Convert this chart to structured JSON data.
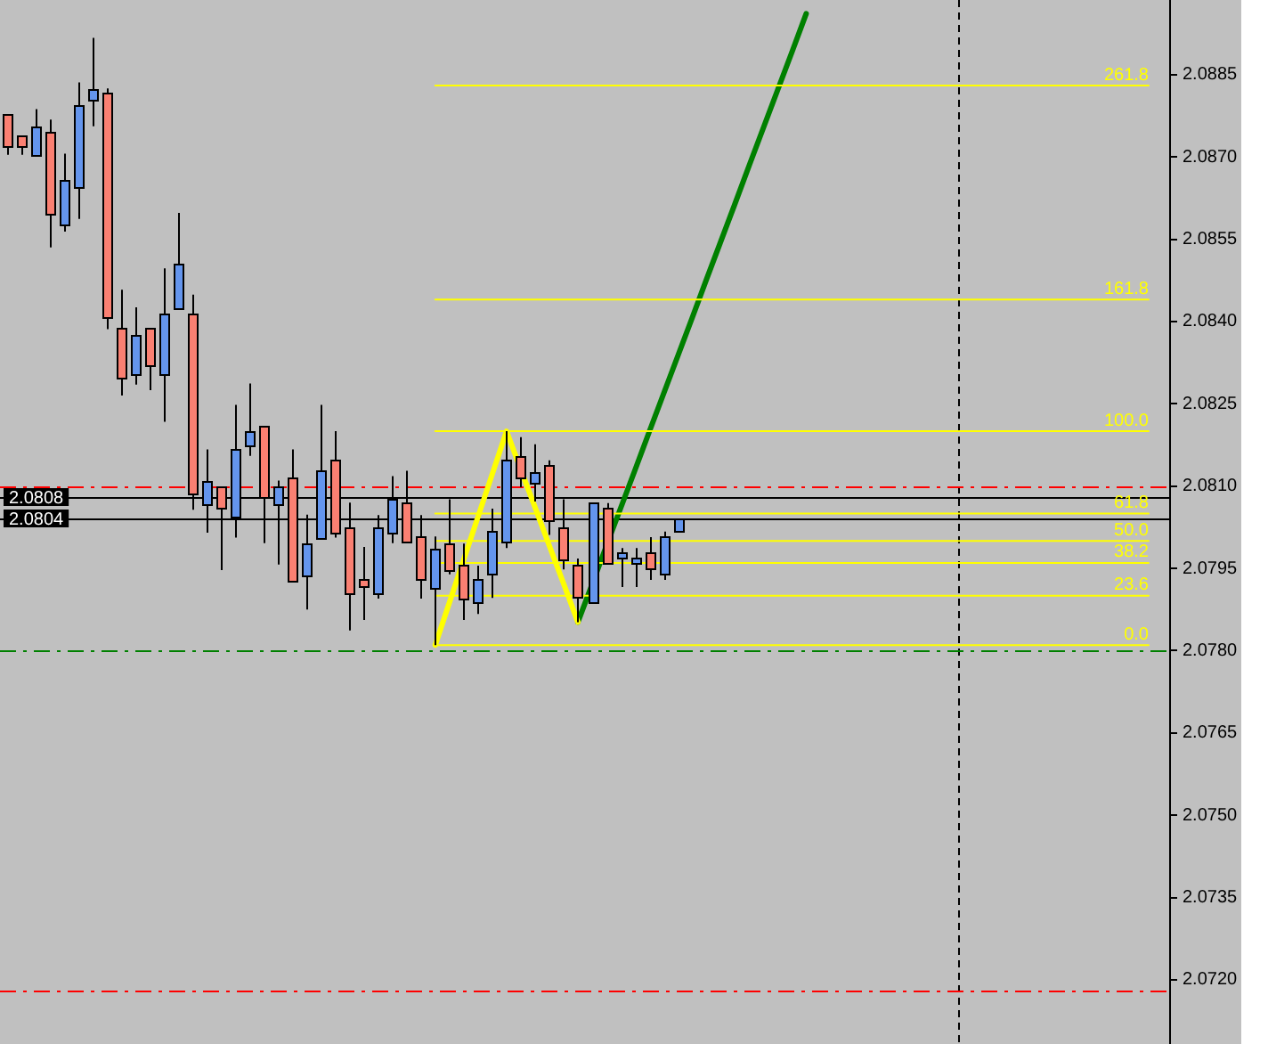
{
  "chart_data": {
    "type": "candlestick",
    "categories": [
      null,
      null,
      null,
      null,
      null,
      null,
      null,
      null,
      null,
      null,
      null,
      null,
      null,
      null,
      null,
      null,
      null,
      null,
      null,
      null,
      null,
      null,
      null,
      null,
      null,
      null,
      null,
      null,
      null,
      null,
      null,
      null,
      null,
      null,
      null,
      null,
      null,
      null,
      null,
      null,
      null,
      null,
      null,
      null,
      null,
      null,
      null,
      null,
      null,
      null,
      null,
      null,
      null,
      null,
      null,
      null,
      null,
      null,
      null,
      null,
      null,
      null,
      null,
      null,
      null,
      null,
      null,
      null,
      null,
      null,
      null,
      null,
      null,
      null,
      null,
      null,
      null,
      null,
      null,
      null,
      null,
      null
    ],
    "ohlc": [
      [
        2.08777,
        2.08777,
        2.08704,
        2.08718
      ],
      [
        2.08738,
        2.08738,
        2.08704,
        2.08718
      ],
      [
        2.08705,
        2.08787,
        2.08705,
        2.08757
      ],
      [
        2.08747,
        2.08768,
        2.08535,
        2.08598
      ],
      [
        2.08575,
        2.08706,
        2.08564,
        2.08657
      ],
      [
        2.08647,
        2.08836,
        2.08587,
        2.08796
      ],
      [
        2.08806,
        2.08917,
        2.08756,
        2.08825
      ],
      [
        2.08816,
        2.08825,
        2.08386,
        2.08406
      ],
      [
        2.08387,
        2.08458,
        2.08265,
        2.08296
      ],
      [
        2.08306,
        2.08426,
        2.08285,
        2.08377
      ],
      [
        2.08387,
        2.08387,
        2.08275,
        2.08319
      ],
      [
        2.08306,
        2.08497,
        2.08217,
        2.08416
      ],
      [
        2.08426,
        2.08598,
        2.08426,
        2.08507
      ],
      [
        2.08416,
        2.08449,
        2.08057,
        2.08087
      ],
      [
        2.08067,
        2.08167,
        2.08015,
        2.08109
      ],
      [
        2.08098,
        2.08098,
        2.07947,
        2.08058
      ],
      [
        2.08045,
        2.08248,
        2.08006,
        2.08167
      ],
      [
        2.08174,
        2.08287,
        2.08155,
        2.082
      ],
      [
        2.08209,
        2.08209,
        2.07996,
        2.08078
      ],
      [
        2.08067,
        2.0811,
        2.07957,
        2.08099
      ],
      [
        2.08117,
        2.08167,
        2.07928,
        2.07928
      ],
      [
        2.07937,
        2.08048,
        2.07875,
        2.07997
      ],
      [
        2.08006,
        2.08248,
        2.08006,
        2.08128
      ],
      [
        2.08147,
        2.082,
        2.08006,
        2.08015
      ],
      [
        2.08026,
        2.0807,
        2.07837,
        2.07905
      ],
      [
        2.07929,
        2.07989,
        2.07856,
        2.07915
      ],
      [
        2.07905,
        2.08047,
        2.07895,
        2.08026
      ],
      [
        2.08017,
        2.08118,
        2.07996,
        2.08078
      ],
      [
        2.08069,
        2.08128,
        2.07997,
        2.07997
      ],
      [
        2.08007,
        2.08047,
        2.07895,
        2.07928
      ],
      [
        2.07916,
        2.08008,
        2.0781,
        2.07987
      ],
      [
        2.07997,
        2.08076,
        2.07939,
        2.07948
      ],
      [
        2.07958,
        2.07995,
        2.07856,
        2.07896
      ],
      [
        2.07887,
        2.07955,
        2.07867,
        2.07929
      ],
      [
        2.07939,
        2.08059,
        2.07896,
        2.08017
      ],
      [
        2.07997,
        2.082,
        2.07987,
        2.08147
      ],
      [
        2.08156,
        2.08189,
        2.08098,
        2.08117
      ],
      [
        2.08108,
        2.08176,
        2.08072,
        2.08127
      ],
      [
        2.08137,
        2.08147,
        2.08011,
        2.08037
      ],
      [
        2.08026,
        2.08076,
        2.07948,
        2.07968
      ],
      [
        2.07958,
        2.07968,
        2.07852,
        2.079
      ],
      [
        2.07887,
        2.08069,
        2.07887,
        2.08069
      ],
      [
        2.08059,
        2.08069,
        2.07958,
        2.07958
      ],
      [
        2.07968,
        2.07987,
        2.07916,
        2.07978
      ],
      [
        2.07958,
        2.07987,
        2.07916,
        2.07968
      ],
      [
        2.07978,
        2.08007,
        2.07929,
        2.07948
      ],
      [
        2.07939,
        2.08017,
        2.07929,
        2.08007
      ],
      [
        2.08017,
        2.0804,
        2.08017,
        2.0804
      ],
      null,
      null,
      null,
      null,
      null,
      null,
      null,
      null,
      null,
      null,
      null,
      null,
      null,
      null,
      null,
      null,
      null,
      null,
      null,
      null,
      null,
      null,
      null,
      null,
      null,
      null,
      null,
      null,
      null,
      null,
      null,
      null,
      null,
      null
    ],
    "colors": [
      "#fa8072",
      "#fa8072",
      "#6495ed",
      "#fa8072",
      "#6495ed",
      "#6495ed",
      "#6495ed",
      "#fa8072",
      "#fa8072",
      "#6495ed",
      "#fa8072",
      "#6495ed",
      "#6495ed",
      "#fa8072",
      "#6495ed",
      "#fa8072",
      "#6495ed",
      "#6495ed",
      "#fa8072",
      "#6495ed",
      "#fa8072",
      "#6495ed",
      "#6495ed",
      "#fa8072",
      "#fa8072",
      "#fa8072",
      "#6495ed",
      "#6495ed",
      "#fa8072",
      "#fa8072",
      "#6495ed",
      "#fa8072",
      "#fa8072",
      "#6495ed",
      "#6495ed",
      "#6495ed",
      "#fa8072",
      "#6495ed",
      "#fa8072",
      "#fa8072",
      "#fa8072",
      "#6495ed",
      "#fa8072",
      "#6495ed",
      "#6495ed",
      "#fa8072",
      "#6495ed",
      "#6495ed",
      null,
      null,
      null,
      null,
      null,
      null,
      null,
      null,
      null,
      null,
      null,
      null,
      null,
      null,
      null,
      null,
      null,
      null,
      null,
      null,
      null,
      null,
      null,
      null,
      null,
      null,
      null,
      null,
      null,
      null,
      null,
      null,
      null,
      null
    ],
    "series": [
      {
        "name": "0.0",
        "type": "line",
        "color": "#ffff00",
        "values": [
          null,
          null,
          null,
          null,
          null,
          null,
          null,
          null,
          null,
          null,
          null,
          null,
          null,
          null,
          null,
          null,
          null,
          null,
          null,
          null,
          null,
          null,
          null,
          null,
          null,
          null,
          null,
          null,
          null,
          null,
          2.0781,
          2.0781,
          2.0781,
          2.0781,
          2.0781,
          2.0781,
          2.0781,
          2.0781,
          2.0781,
          2.0781,
          2.0781,
          2.0781,
          2.0781,
          2.0781,
          2.0781,
          2.0781,
          2.0781,
          2.0781,
          2.0781,
          2.0781,
          2.0781,
          2.0781,
          2.0781,
          2.0781,
          2.0781,
          2.0781,
          2.0781,
          2.0781,
          2.0781,
          2.0781,
          2.0781,
          2.0781,
          2.0781,
          2.0781,
          2.0781,
          2.0781,
          2.0781,
          2.0781,
          2.0781,
          2.0781,
          2.0781,
          2.0781,
          2.0781,
          2.0781,
          2.0781,
          2.0781,
          2.0781,
          2.0781,
          2.0781,
          2.0781,
          2.0781,
          null
        ]
      },
      {
        "name": "23.6",
        "type": "line",
        "color": "#ffff00",
        "values": [
          null,
          null,
          null,
          null,
          null,
          null,
          null,
          null,
          null,
          null,
          null,
          null,
          null,
          null,
          null,
          null,
          null,
          null,
          null,
          null,
          null,
          null,
          null,
          null,
          null,
          null,
          null,
          null,
          null,
          null,
          2.079,
          2.079,
          2.079,
          2.079,
          2.079,
          2.079,
          2.079,
          2.079,
          2.079,
          2.079,
          2.079,
          2.079,
          2.079,
          2.079,
          2.079,
          2.079,
          2.079,
          2.079,
          2.079,
          2.079,
          2.079,
          2.079,
          2.079,
          2.079,
          2.079,
          2.079,
          2.079,
          2.079,
          2.079,
          2.079,
          2.079,
          2.079,
          2.079,
          2.079,
          2.079,
          2.079,
          2.079,
          2.079,
          2.079,
          2.079,
          2.079,
          2.079,
          2.079,
          2.079,
          2.079,
          2.079,
          2.079,
          2.079,
          2.079,
          2.079,
          2.079,
          null
        ]
      },
      {
        "name": "38.2",
        "type": "line",
        "color": "#ffff00",
        "values": [
          null,
          null,
          null,
          null,
          null,
          null,
          null,
          null,
          null,
          null,
          null,
          null,
          null,
          null,
          null,
          null,
          null,
          null,
          null,
          null,
          null,
          null,
          null,
          null,
          null,
          null,
          null,
          null,
          null,
          null,
          2.0796,
          2.0796,
          2.0796,
          2.0796,
          2.0796,
          2.0796,
          2.0796,
          2.0796,
          2.0796,
          2.0796,
          2.0796,
          2.0796,
          2.0796,
          2.0796,
          2.0796,
          2.0796,
          2.0796,
          2.0796,
          2.0796,
          2.0796,
          2.0796,
          2.0796,
          2.0796,
          2.0796,
          2.0796,
          2.0796,
          2.0796,
          2.0796,
          2.0796,
          2.0796,
          2.0796,
          2.0796,
          2.0796,
          2.0796,
          2.0796,
          2.0796,
          2.0796,
          2.0796,
          2.0796,
          2.0796,
          2.0796,
          2.0796,
          2.0796,
          2.0796,
          2.0796,
          2.0796,
          2.0796,
          2.0796,
          2.0796,
          2.0796,
          2.0796,
          null
        ]
      },
      {
        "name": "50.0",
        "type": "line",
        "color": "#ffff00",
        "values": [
          null,
          null,
          null,
          null,
          null,
          null,
          null,
          null,
          null,
          null,
          null,
          null,
          null,
          null,
          null,
          null,
          null,
          null,
          null,
          null,
          null,
          null,
          null,
          null,
          null,
          null,
          null,
          null,
          null,
          null,
          2.08,
          2.08,
          2.08,
          2.08,
          2.08,
          2.08,
          2.08,
          2.08,
          2.08,
          2.08,
          2.08,
          2.08,
          2.08,
          2.08,
          2.08,
          2.08,
          2.08,
          2.08,
          2.08,
          2.08,
          2.08,
          2.08,
          2.08,
          2.08,
          2.08,
          2.08,
          2.08,
          2.08,
          2.08,
          2.08,
          2.08,
          2.08,
          2.08,
          2.08,
          2.08,
          2.08,
          2.08,
          2.08,
          2.08,
          2.08,
          2.08,
          2.08,
          2.08,
          2.08,
          2.08,
          2.08,
          2.08,
          2.08,
          2.08,
          2.08,
          2.08,
          null
        ]
      },
      {
        "name": "61.8",
        "type": "line",
        "color": "#ffff00",
        "values": [
          null,
          null,
          null,
          null,
          null,
          null,
          null,
          null,
          null,
          null,
          null,
          null,
          null,
          null,
          null,
          null,
          null,
          null,
          null,
          null,
          null,
          null,
          null,
          null,
          null,
          null,
          null,
          null,
          null,
          null,
          2.0805,
          2.0805,
          2.0805,
          2.0805,
          2.0805,
          2.0805,
          2.0805,
          2.0805,
          2.0805,
          2.0805,
          2.0805,
          2.0805,
          2.0805,
          2.0805,
          2.0805,
          2.0805,
          2.0805,
          2.0805,
          2.0805,
          2.0805,
          2.0805,
          2.0805,
          2.0805,
          2.0805,
          2.0805,
          2.0805,
          2.0805,
          2.0805,
          2.0805,
          2.0805,
          2.0805,
          2.0805,
          2.0805,
          2.0805,
          2.0805,
          2.0805,
          2.0805,
          2.0805,
          2.0805,
          2.0805,
          2.0805,
          2.0805,
          2.0805,
          2.0805,
          2.0805,
          2.0805,
          2.0805,
          2.0805,
          2.0805,
          2.0805,
          2.0805,
          null
        ]
      },
      {
        "name": "100.0",
        "type": "line",
        "color": "#ffff00",
        "values": [
          null,
          null,
          null,
          null,
          null,
          null,
          null,
          null,
          null,
          null,
          null,
          null,
          null,
          null,
          null,
          null,
          null,
          null,
          null,
          null,
          null,
          null,
          null,
          null,
          null,
          null,
          null,
          null,
          null,
          null,
          2.082,
          2.082,
          2.082,
          2.082,
          2.082,
          2.082,
          2.082,
          2.082,
          2.082,
          2.082,
          2.082,
          2.082,
          2.082,
          2.082,
          2.082,
          2.082,
          2.082,
          2.082,
          2.082,
          2.082,
          2.082,
          2.082,
          2.082,
          2.082,
          2.082,
          2.082,
          2.082,
          2.082,
          2.082,
          2.082,
          2.082,
          2.082,
          2.082,
          2.082,
          2.082,
          2.082,
          2.082,
          2.082,
          2.082,
          2.082,
          2.082,
          2.082,
          2.082,
          2.082,
          2.082,
          2.082,
          2.082,
          2.082,
          2.082,
          2.082,
          2.082,
          null
        ]
      },
      {
        "name": "161.8",
        "type": "line",
        "color": "#ffff00",
        "values": [
          null,
          null,
          null,
          null,
          null,
          null,
          null,
          null,
          null,
          null,
          null,
          null,
          null,
          null,
          null,
          null,
          null,
          null,
          null,
          null,
          null,
          null,
          null,
          null,
          null,
          null,
          null,
          null,
          null,
          null,
          2.0844,
          2.0844,
          2.0844,
          2.0844,
          2.0844,
          2.0844,
          2.0844,
          2.0844,
          2.0844,
          2.0844,
          2.0844,
          2.0844,
          2.0844,
          2.0844,
          2.0844,
          2.0844,
          2.0844,
          2.0844,
          2.0844,
          2.0844,
          2.0844,
          2.0844,
          2.0844,
          2.0844,
          2.0844,
          2.0844,
          2.0844,
          2.0844,
          2.0844,
          2.0844,
          2.0844,
          2.0844,
          2.0844,
          2.0844,
          2.0844,
          2.0844,
          2.0844,
          2.0844,
          2.0844,
          2.0844,
          2.0844,
          2.0844,
          2.0844,
          2.0844,
          2.0844,
          2.0844,
          2.0844,
          2.0844,
          2.0844,
          2.0844,
          2.0844,
          null
        ]
      },
      {
        "name": "261.8",
        "type": "line",
        "color": "#ffff00",
        "values": [
          null,
          null,
          null,
          null,
          null,
          null,
          null,
          null,
          null,
          null,
          null,
          null,
          null,
          null,
          null,
          null,
          null,
          null,
          null,
          null,
          null,
          null,
          null,
          null,
          null,
          null,
          null,
          null,
          null,
          null,
          2.0883,
          2.0883,
          2.0883,
          2.0883,
          2.0883,
          2.0883,
          2.0883,
          2.0883,
          2.0883,
          2.0883,
          2.0883,
          2.0883,
          2.0883,
          2.0883,
          2.0883,
          2.0883,
          2.0883,
          2.0883,
          2.0883,
          2.0883,
          2.0883,
          2.0883,
          2.0883,
          2.0883,
          2.0883,
          2.0883,
          2.0883,
          2.0883,
          2.0883,
          2.0883,
          2.0883,
          2.0883,
          2.0883,
          2.0883,
          2.0883,
          2.0883,
          2.0883,
          2.0883,
          2.0883,
          2.0883,
          2.0883,
          2.0883,
          2.0883,
          2.0883,
          2.0883,
          2.0883,
          2.0883,
          2.0883,
          2.0883,
          2.0883,
          2.0883,
          null
        ]
      },
      {
        "type": "line",
        "color": "#ffff00",
        "values": [
          null,
          null,
          null,
          null,
          null,
          null,
          null,
          null,
          null,
          null,
          null,
          null,
          null,
          null,
          null,
          null,
          null,
          null,
          null,
          null,
          null,
          null,
          null,
          null,
          null,
          null,
          null,
          null,
          null,
          null,
          2.0781,
          2.07888,
          2.07966,
          2.08044,
          2.08122,
          2.082,
          2.0813,
          2.08061,
          2.07991,
          2.07922,
          2.07852,
          null,
          null,
          null,
          null,
          null,
          null,
          null,
          null,
          null,
          null,
          null,
          null,
          null,
          null,
          null,
          null,
          null,
          null,
          null,
          null,
          null,
          null,
          null,
          null,
          null,
          null,
          null,
          null,
          null,
          null,
          null,
          null,
          null,
          null,
          null,
          null,
          null,
          null,
          null,
          null,
          null
        ]
      },
      {
        "type": "line",
        "color": "#008000",
        "values": [
          null,
          null,
          null,
          null,
          null,
          null,
          null,
          null,
          null,
          null,
          null,
          null,
          null,
          null,
          null,
          null,
          null,
          null,
          null,
          null,
          null,
          null,
          null,
          null,
          null,
          null,
          null,
          null,
          null,
          null,
          null,
          null,
          null,
          null,
          null,
          null,
          null,
          null,
          null,
          null,
          2.07852,
          2.07921,
          2.07991,
          2.0806,
          2.08129,
          2.08199,
          2.08268,
          2.08337,
          2.08406,
          2.08476,
          2.08545,
          2.08614,
          2.08684,
          2.08753,
          2.08822,
          2.08891,
          2.08961,
          null,
          null,
          null,
          null,
          null,
          null,
          null,
          null,
          null,
          null,
          null,
          null,
          null,
          null,
          null,
          null,
          null,
          null,
          null,
          null,
          null,
          null,
          null,
          null,
          null
        ]
      }
    ],
    "ylim": [
      2.07083,
      2.08986
    ],
    "yticks": [
      {
        "value": 2.072,
        "label": "2.0720"
      },
      2.0735,
      {
        "value": 2.075,
        "label": "2.0750"
      },
      2.0765,
      {
        "value": 2.078,
        "label": "2.0780"
      },
      2.0795,
      {
        "value": 2.081,
        "label": "2.0810"
      },
      2.0825,
      {
        "value": 2.084,
        "label": "2.0840"
      },
      2.0855,
      {
        "value": 2.087,
        "label": "2.0870"
      },
      2.0885
    ],
    "ref_lines": [
      {
        "axis": "y",
        "value": 2.0808,
        "label": "2.0808",
        "color": "#000000",
        "line_style": "solid"
      },
      {
        "axis": "y",
        "value": 2.0804,
        "label": "2.0804",
        "color": "#000000",
        "line_style": "solid"
      },
      {
        "axis": "y",
        "value": 2.081,
        "color": "#ff0000",
        "line_style": "dashed"
      },
      {
        "axis": "y",
        "value": 2.078,
        "color": "#008000",
        "line_style": "dashed"
      },
      {
        "axis": "y",
        "value": 2.0718,
        "color": "#ff0000",
        "line_style": "dashed"
      }
    ],
    "tick_labels": "y"
  }
}
